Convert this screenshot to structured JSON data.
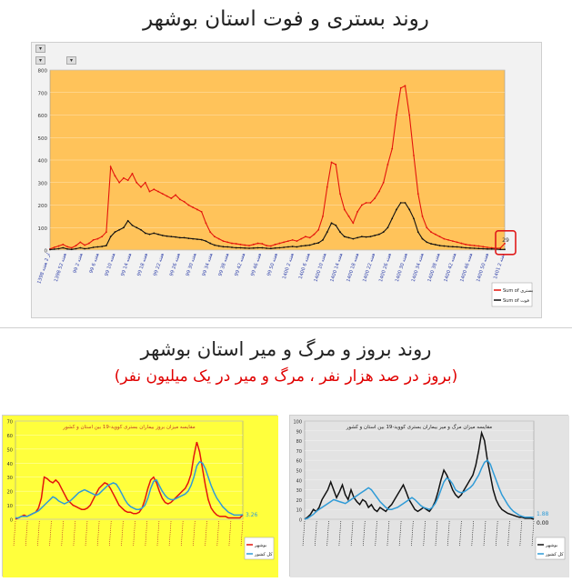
{
  "titles": {
    "main": "روند بستری و فوت استان بوشهر",
    "section": "روند بروز و مرگ و میر استان بوشهر",
    "subtitle": "(بروز در صد هزار نفر ، مرگ و میر در یک میلیون نفر)"
  },
  "colors": {
    "plot_bg_main": "#ffc35a",
    "plot_bg_left": "#ffff3c",
    "plot_bg_right": "#e3e3e3",
    "red": "#e3140c",
    "black": "#111111",
    "blue": "#2f9bd7",
    "green": "#2f8a3a",
    "highlight_box": "#e01b1b"
  },
  "chart_data": [
    {
      "type": "line",
      "title": "روند بستری و فوت استان بوشهر",
      "ylim": [
        0,
        800
      ],
      "yticks": [
        0,
        100,
        200,
        300,
        400,
        500,
        600,
        700,
        800
      ],
      "grid": true,
      "legend_position": "right",
      "x_tick_labels": [
        "1398 از 2 هفته",
        "1398 هفته 52",
        "99 هفته 2",
        "99 هفته 6",
        "99 هفته 10",
        "99 هفته 14",
        "99 هفته 18",
        "99 هفته 22",
        "99 هفته 26",
        "99 هفته 30",
        "99 هفته 34",
        "99 هفته 38",
        "99 هفته 42",
        "99 هفته 46",
        "99 هفته 50",
        "1400 هفته 2",
        "1400 هفته 6",
        "1400 هفته 10",
        "1400 هفته 14",
        "1400 هفته 18",
        "1400 هفته 22",
        "1400 هفته 26",
        "1400 هفته 30",
        "1400 هفته 34",
        "1400 هفته 38",
        "1400 هفته 42",
        "1400 هفته 46",
        "1400 هفته 50",
        "1401 هفته 2"
      ],
      "annotation": "29",
      "series": [
        {
          "name": "Sum of بستری",
          "color": "#e3140c",
          "values": [
            5,
            12,
            18,
            25,
            15,
            10,
            20,
            35,
            22,
            30,
            45,
            50,
            60,
            80,
            370,
            330,
            300,
            320,
            310,
            340,
            300,
            280,
            300,
            260,
            270,
            260,
            250,
            240,
            230,
            245,
            225,
            215,
            200,
            190,
            180,
            170,
            120,
            80,
            60,
            50,
            40,
            35,
            30,
            28,
            25,
            22,
            20,
            25,
            30,
            28,
            20,
            18,
            25,
            30,
            35,
            40,
            45,
            40,
            50,
            60,
            55,
            70,
            90,
            150,
            280,
            390,
            380,
            250,
            180,
            150,
            120,
            170,
            200,
            210,
            210,
            230,
            260,
            300,
            380,
            450,
            600,
            720,
            730,
            600,
            420,
            250,
            150,
            100,
            80,
            70,
            60,
            50,
            45,
            40,
            35,
            30,
            25,
            22,
            20,
            18,
            15,
            12,
            10,
            8,
            9,
            29
          ]
        },
        {
          "name": "Sum of فوت",
          "color": "#111111",
          "values": [
            2,
            4,
            6,
            10,
            5,
            3,
            6,
            10,
            6,
            8,
            12,
            14,
            16,
            20,
            60,
            80,
            90,
            100,
            130,
            110,
            100,
            90,
            75,
            70,
            75,
            70,
            65,
            62,
            60,
            58,
            55,
            55,
            52,
            50,
            48,
            46,
            40,
            30,
            22,
            18,
            15,
            14,
            12,
            10,
            10,
            9,
            8,
            9,
            10,
            10,
            8,
            7,
            9,
            10,
            12,
            14,
            16,
            14,
            18,
            20,
            22,
            28,
            32,
            45,
            80,
            120,
            110,
            80,
            60,
            55,
            50,
            55,
            60,
            58,
            60,
            65,
            70,
            80,
            100,
            140,
            180,
            210,
            210,
            180,
            140,
            80,
            50,
            35,
            28,
            24,
            20,
            18,
            16,
            15,
            14,
            12,
            10,
            9,
            8,
            7,
            6,
            5,
            5,
            4,
            3,
            3
          ]
        }
      ]
    },
    {
      "type": "line",
      "title": "مقایسه میزان بروز بیماران بستری کووید-19 بین استان و کشور",
      "ylim": [
        0,
        70
      ],
      "yticks": [
        0,
        10,
        20,
        30,
        40,
        50,
        60,
        70
      ],
      "grid": true,
      "legend_position": "right",
      "end_label": "3.26",
      "series": [
        {
          "name": "بوشهر",
          "color": "#e3140c",
          "values": [
            0,
            1,
            2,
            3,
            2,
            3,
            4,
            5,
            8,
            15,
            30,
            29,
            27,
            26,
            28,
            26,
            22,
            18,
            14,
            12,
            10,
            9,
            8,
            7,
            7,
            8,
            10,
            14,
            18,
            22,
            24,
            26,
            25,
            22,
            18,
            14,
            10,
            8,
            6,
            5,
            5,
            4,
            4,
            5,
            8,
            14,
            22,
            28,
            30,
            26,
            20,
            15,
            12,
            11,
            12,
            14,
            16,
            18,
            20,
            22,
            26,
            32,
            45,
            55,
            48,
            36,
            24,
            14,
            8,
            5,
            3,
            2,
            2,
            2,
            1,
            1,
            1,
            1,
            1,
            3.26
          ]
        },
        {
          "name": "کل کشور",
          "color": "#2f9bd7",
          "values": [
            1,
            1,
            2,
            2,
            2,
            3,
            4,
            5,
            6,
            8,
            10,
            12,
            14,
            16,
            15,
            13,
            12,
            11,
            12,
            13,
            15,
            17,
            19,
            20,
            21,
            20,
            19,
            18,
            17,
            18,
            20,
            22,
            24,
            25,
            26,
            25,
            22,
            18,
            14,
            11,
            9,
            8,
            7,
            7,
            8,
            10,
            15,
            22,
            27,
            28,
            24,
            20,
            17,
            15,
            14,
            14,
            15,
            16,
            17,
            18,
            20,
            24,
            30,
            38,
            41,
            40,
            36,
            30,
            24,
            19,
            15,
            12,
            9,
            7,
            5,
            4,
            3,
            3,
            3,
            3.26
          ]
        }
      ]
    },
    {
      "type": "line",
      "title": "مقایسه میزان مرگ و میر بیماران بستری کووید-19 بین استان و کشور",
      "ylim": [
        0,
        100
      ],
      "yticks": [
        0,
        10,
        20,
        30,
        40,
        50,
        60,
        70,
        80,
        90,
        100
      ],
      "grid": true,
      "legend_position": "right",
      "end_labels": [
        "1.88",
        "0.00"
      ],
      "series": [
        {
          "name": "بوشهر",
          "color": "#111111",
          "values": [
            0,
            2,
            5,
            10,
            8,
            12,
            20,
            25,
            30,
            38,
            30,
            22,
            28,
            35,
            25,
            20,
            30,
            22,
            18,
            15,
            20,
            18,
            12,
            15,
            10,
            8,
            12,
            10,
            8,
            12,
            15,
            20,
            25,
            30,
            35,
            28,
            20,
            15,
            10,
            8,
            10,
            12,
            10,
            8,
            12,
            18,
            28,
            40,
            50,
            45,
            38,
            30,
            25,
            22,
            25,
            30,
            35,
            40,
            45,
            55,
            70,
            88,
            80,
            60,
            45,
            30,
            20,
            14,
            10,
            8,
            6,
            5,
            4,
            3,
            2,
            2,
            1,
            1,
            1,
            0
          ]
        },
        {
          "name": "کل کشور",
          "color": "#2f9bd7",
          "values": [
            0,
            1,
            3,
            5,
            8,
            10,
            12,
            14,
            16,
            18,
            20,
            19,
            18,
            17,
            16,
            18,
            20,
            22,
            24,
            26,
            28,
            30,
            32,
            30,
            26,
            22,
            18,
            15,
            12,
            10,
            10,
            11,
            12,
            14,
            16,
            18,
            20,
            22,
            20,
            17,
            14,
            12,
            11,
            10,
            12,
            16,
            22,
            30,
            38,
            42,
            40,
            36,
            30,
            28,
            27,
            28,
            30,
            32,
            35,
            40,
            45,
            52,
            58,
            60,
            56,
            48,
            40,
            32,
            25,
            20,
            15,
            11,
            8,
            6,
            4,
            3,
            2,
            2,
            2,
            1.88
          ]
        }
      ]
    }
  ]
}
